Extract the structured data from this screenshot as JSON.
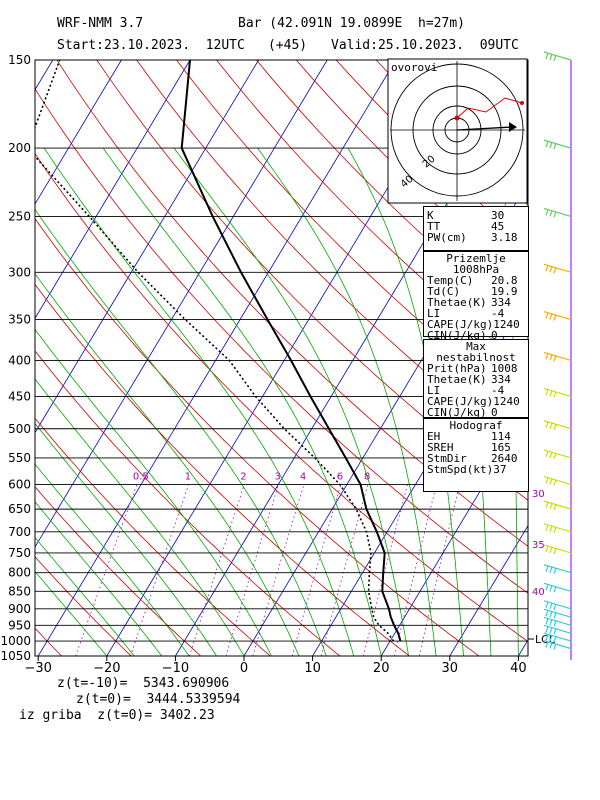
{
  "header": {
    "model": "WRF-NMM 3.7",
    "station": "Bar (42.091N 19.0899E  h=27m)",
    "start": "Start:23.10.2023.  12UTC",
    "lead": "(+45)",
    "valid": "Valid:25.10.2023.  09UTC"
  },
  "hodograph": {
    "label": "ovorovi",
    "ring_labels": [
      "20",
      "40"
    ]
  },
  "indices": {
    "K": {
      "label": "K",
      "value": "30"
    },
    "TT": {
      "label": "TT",
      "value": "45"
    },
    "PW": {
      "label": "PW(cm)",
      "value": "3.18"
    }
  },
  "surface": {
    "title": "Prizemlje 1008hPa",
    "rows": [
      {
        "label": "Temp(C)",
        "value": "20.8"
      },
      {
        "label": "Td(C)",
        "value": "19.9"
      },
      {
        "label": "Thetae(K)",
        "value": "334"
      },
      {
        "label": "LI",
        "value": "-4"
      },
      {
        "label": "CAPE(J/kg)",
        "value": "1240"
      },
      {
        "label": "CIN(J/kg)",
        "value": "0"
      }
    ]
  },
  "maxunstable": {
    "title": "Max nestabilnost",
    "rows": [
      {
        "label": "Prit(hPa)",
        "value": "1008"
      },
      {
        "label": "Thetae(K)",
        "value": "334"
      },
      {
        "label": "LI",
        "value": "-4"
      },
      {
        "label": "CAPE(J/kg)",
        "value": "1240"
      },
      {
        "label": "CIN(J/kg)",
        "value": "0"
      }
    ]
  },
  "hodo_params": {
    "title": "Hodograf",
    "rows": [
      {
        "label": "EH",
        "value": "114"
      },
      {
        "label": "SREH",
        "value": "165"
      },
      {
        "label": "StmDir",
        "value": "2640"
      },
      {
        "label": "StmSpd(kt)",
        "value": "37"
      }
    ]
  },
  "footer": {
    "z_m10": "z(t=-10)=  5343.690906",
    "z_0": "z(t=0)=  3444.5339594",
    "griba": "iz griba  z(t=0)= 3402.23"
  },
  "chart_data": {
    "type": "line",
    "title": "",
    "xlabel": "",
    "ylabel": "",
    "skew": "skew-T log-p",
    "pressure_levels": [
      150,
      200,
      250,
      300,
      350,
      400,
      450,
      500,
      550,
      600,
      650,
      700,
      750,
      800,
      850,
      900,
      950,
      1000,
      1050
    ],
    "temperature_ticks": [
      -30,
      -20,
      -10,
      0,
      10,
      20,
      30,
      40
    ],
    "xlim": [
      -30,
      42
    ],
    "ylim": [
      1050,
      150
    ],
    "mixing_ratio_labels": [
      "0.5",
      "1",
      "2",
      "3",
      "4",
      "6",
      "8"
    ],
    "right_axis_labels": [
      "30",
      "35",
      "40"
    ],
    "lcl_label": "LCL",
    "colors": {
      "isotherm": "#0000cc",
      "dry_adiabat": "#cc0000",
      "moist_adiabat": "#00aa00",
      "mixing_ratio": "#aa00aa",
      "isobar": "#000000",
      "wind_barbs": "#ccdd00"
    },
    "series": [
      {
        "name": "",
        "kind": "temperature",
        "points": [
          {
            "p": 1000,
            "t": 21.5
          },
          {
            "p": 975,
            "t": 20.5
          },
          {
            "p": 950,
            "t": 19.2
          },
          {
            "p": 925,
            "t": 18.0
          },
          {
            "p": 900,
            "t": 17.0
          },
          {
            "p": 850,
            "t": 14.5
          },
          {
            "p": 800,
            "t": 13.0
          },
          {
            "p": 750,
            "t": 11.5
          },
          {
            "p": 700,
            "t": 8.5
          },
          {
            "p": 650,
            "t": 5.0
          },
          {
            "p": 600,
            "t": 2.0
          },
          {
            "p": 550,
            "t": -2.5
          },
          {
            "p": 500,
            "t": -7.5
          },
          {
            "p": 450,
            "t": -13.0
          },
          {
            "p": 400,
            "t": -19.0
          },
          {
            "p": 350,
            "t": -26.0
          },
          {
            "p": 300,
            "t": -34.0
          },
          {
            "p": 250,
            "t": -43.0
          },
          {
            "p": 200,
            "t": -53.5
          },
          {
            "p": 150,
            "t": -60.0
          }
        ]
      },
      {
        "name": "",
        "kind": "dewpoint",
        "points": [
          {
            "p": 1000,
            "t": 20.5
          },
          {
            "p": 975,
            "t": 19.0
          },
          {
            "p": 950,
            "t": 17.0
          },
          {
            "p": 925,
            "t": 15.5
          },
          {
            "p": 900,
            "t": 14.5
          },
          {
            "p": 850,
            "t": 12.5
          },
          {
            "p": 800,
            "t": 11.0
          },
          {
            "p": 750,
            "t": 9.5
          },
          {
            "p": 700,
            "t": 7.0
          },
          {
            "p": 650,
            "t": 3.5
          },
          {
            "p": 600,
            "t": -1.0
          },
          {
            "p": 550,
            "t": -7.0
          },
          {
            "p": 500,
            "t": -14.0
          },
          {
            "p": 450,
            "t": -21.0
          },
          {
            "p": 400,
            "t": -28.0
          },
          {
            "p": 350,
            "t": -38.0
          },
          {
            "p": 300,
            "t": -49.0
          },
          {
            "p": 250,
            "t": -61.0
          },
          {
            "p": 200,
            "t": -76.0
          },
          {
            "p": 150,
            "t": -79.0
          }
        ]
      }
    ]
  }
}
